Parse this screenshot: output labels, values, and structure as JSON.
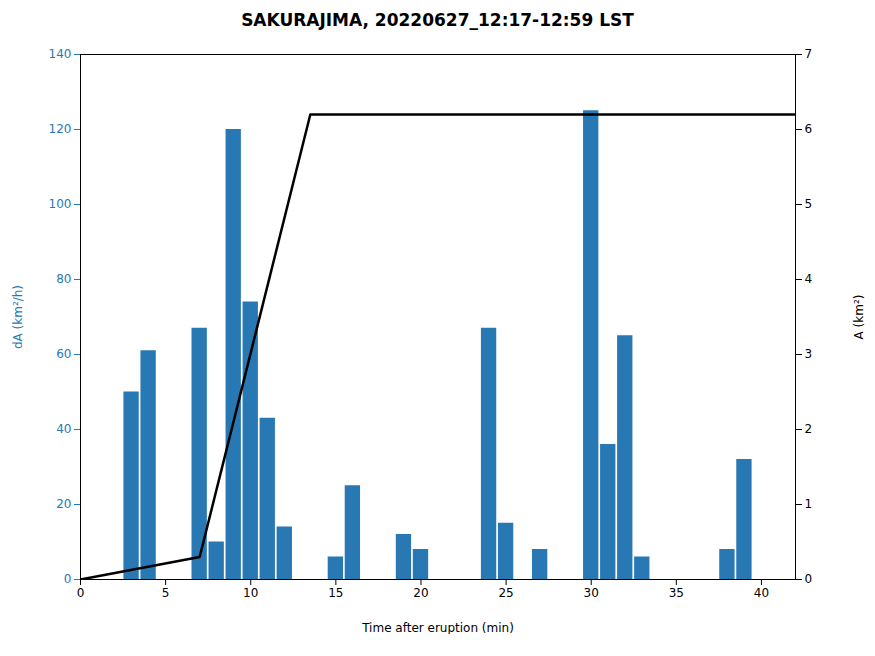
{
  "chart_data": {
    "type": "bar",
    "title": "SAKURAJIMA, 20220627_12:17-12:59 LST",
    "x_label": "Time after eruption (min)",
    "y_label": "dA (km²/h)",
    "y2_label": "A (km²)",
    "xlim": [
      0,
      42
    ],
    "xticks": [
      0,
      5,
      10,
      15,
      20,
      25,
      30,
      35,
      40
    ],
    "ylim": [
      0,
      140
    ],
    "yticks": [
      0,
      20,
      40,
      60,
      80,
      100,
      120,
      140
    ],
    "y2lim": [
      0,
      7
    ],
    "y2ticks": [
      0,
      1,
      2,
      3,
      4,
      5,
      6,
      7
    ],
    "series": [
      {
        "type": "bar",
        "color": "#2878B4",
        "x": [
          3,
          4,
          7,
          8,
          9,
          10,
          11,
          12,
          15,
          16,
          19,
          20,
          24,
          25,
          27,
          30,
          31,
          32,
          33,
          38,
          39,
          40
        ],
        "values": [
          50,
          61,
          67,
          10,
          120,
          74,
          43,
          14,
          6,
          25,
          12,
          8,
          67,
          15,
          8,
          125,
          36,
          65,
          6,
          8,
          32,
          0
        ]
      },
      {
        "type": "line",
        "color": "#000000",
        "axis": "y2",
        "x": [
          0,
          7.0,
          13.5,
          42.0
        ],
        "values": [
          0.0,
          0.3,
          6.2,
          6.2
        ]
      }
    ]
  }
}
